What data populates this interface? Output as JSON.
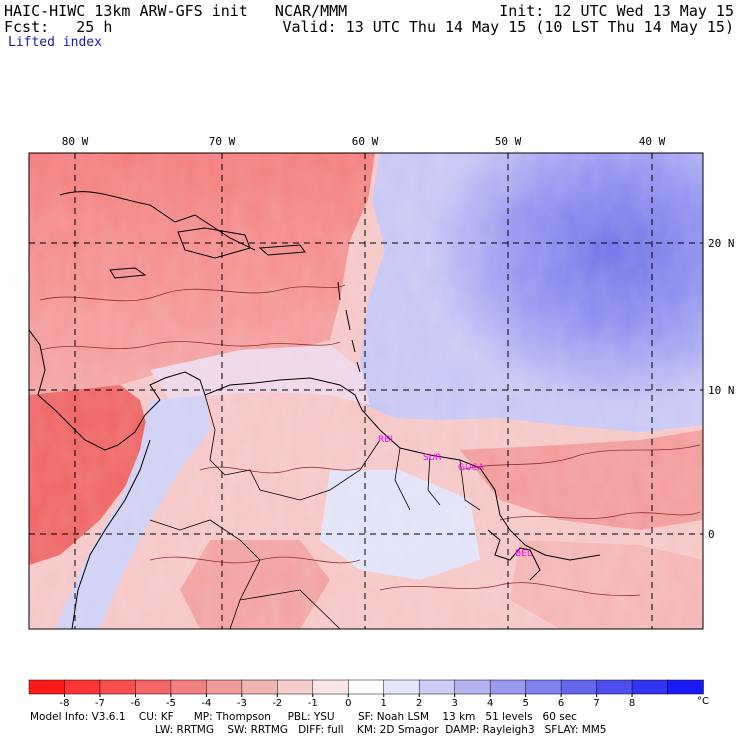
{
  "header": {
    "title_left": "HAIC-HIWC 13km ARW-GFS init   NCAR/MMM",
    "fcst": "Fcst:   25 h",
    "init": "Init: 12 UTC Wed 13 May 15",
    "valid": "Valid: 13 UTC Thu 14 May 15 (10 LST Thu 14 May 15)",
    "field": "Lifted index"
  },
  "map": {
    "lon_labels": [
      "80 W",
      "70 W",
      "60 W",
      "50 W",
      "40 W"
    ],
    "lat_labels": [
      "20 N",
      "10 N",
      "0"
    ],
    "stations": [
      "RBI",
      "SUR",
      "GUCA",
      "BEL"
    ],
    "colors": {
      "frame": "#000000",
      "grid": "#000000",
      "station": "#ff00ff"
    }
  },
  "colorbar": {
    "ticks": [
      "-8",
      "-7",
      "-6",
      "-5",
      "-4",
      "-3",
      "-2",
      "-1",
      "0",
      "1",
      "2",
      "3",
      "4",
      "5",
      "6",
      "7",
      "8"
    ],
    "unit": "°C",
    "colors": [
      "#ff1a1a",
      "#fb3333",
      "#f84e4e",
      "#f56666",
      "#f28080",
      "#f09a9a",
      "#f2b3b3",
      "#f5cccc",
      "#fae6e6",
      "#ffffff",
      "#e6e6fa",
      "#ccccf5",
      "#b3b3f2",
      "#9a9af0",
      "#8080ee",
      "#6666ec",
      "#4e4eef",
      "#3333f2",
      "#1a1af8"
    ]
  },
  "footer": {
    "line1": "Model Info: V3.6.1    CU: KF      MP: Thompson     PBL: YSU       SF: Noah LSM    13 km   51 levels   60 sec",
    "line2": "LW: RRTMG    SW: RRTMG   DIFF: full    KM: 2D Smagor  DAMP: Rayleigh3   SFLAY: MM5"
  }
}
